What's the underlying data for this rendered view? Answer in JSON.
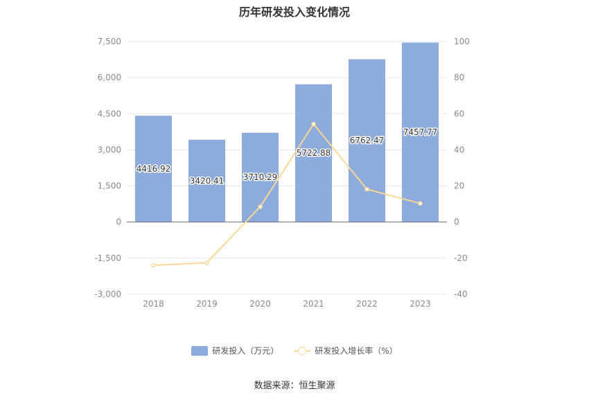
{
  "chart_data": {
    "type": "bar",
    "title": "历年研发投入变化情况",
    "categories": [
      "2018",
      "2019",
      "2020",
      "2021",
      "2022",
      "2023"
    ],
    "series": [
      {
        "name": "研发投入（万元）",
        "type": "bar",
        "axis": "left",
        "values": [
          4416.92,
          3420.41,
          3710.29,
          5722.88,
          6762.47,
          7457.77
        ],
        "labels": [
          "4416.92",
          "3420.41",
          "3710.29",
          "5722.88",
          "6762.47",
          "7457.77"
        ],
        "color": "#8eacdb"
      },
      {
        "name": "研发投入增长率（%）",
        "type": "line",
        "axis": "right",
        "values": [
          -24.0,
          -22.56,
          8.47,
          54.24,
          18.16,
          10.28
        ],
        "color": "#fad797"
      }
    ],
    "y_left": {
      "ylim": [
        -3000,
        7500
      ],
      "ticks": [
        "7,500",
        "6,000",
        "4,500",
        "3,000",
        "1,500",
        "0",
        "-1,500",
        "-3,000"
      ]
    },
    "y_right": {
      "ylim": [
        -40,
        100
      ],
      "ticks": [
        "100",
        "80",
        "60",
        "40",
        "20",
        "0",
        "-20",
        "-40"
      ]
    },
    "grid": true,
    "legend_position": "bottom"
  },
  "legend": {
    "bar_label": "研发投入（万元）",
    "line_label": "研发投入增长率（%）"
  },
  "source": "数据来源：恒生聚源"
}
